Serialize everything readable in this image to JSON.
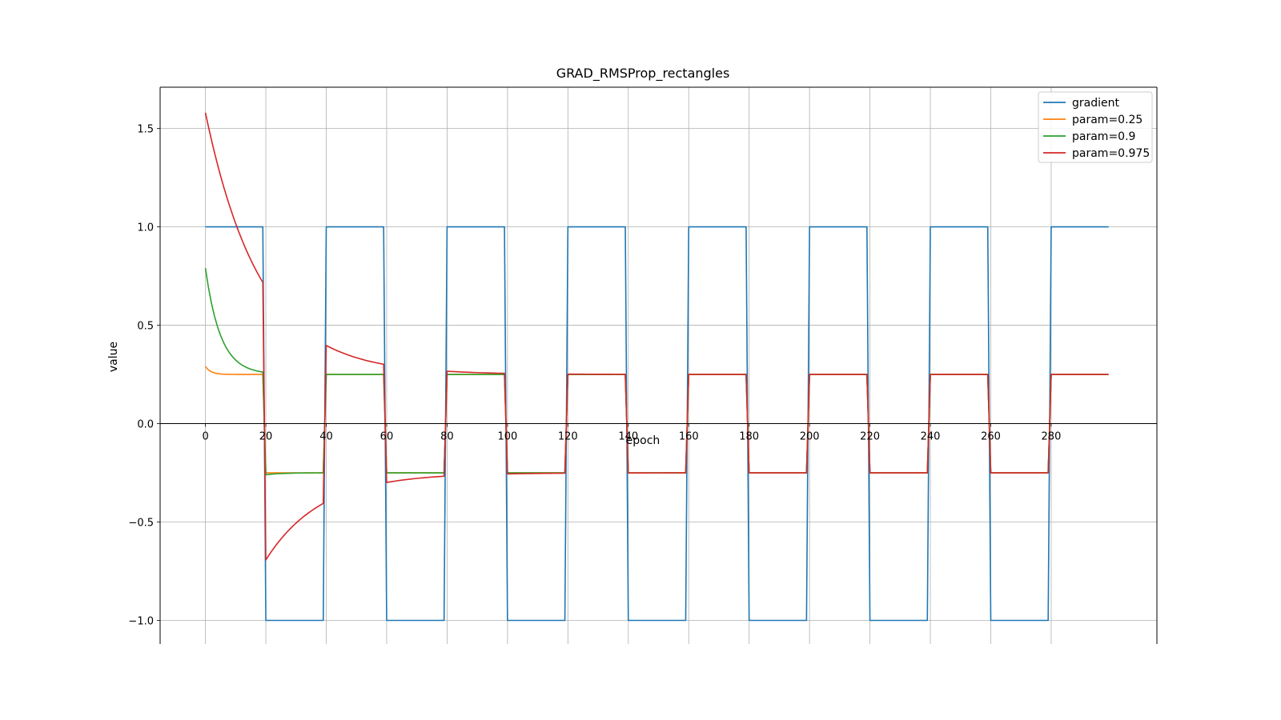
{
  "chart_data": {
    "type": "line",
    "title": "GRAD_RMSProp_rectangles",
    "xlabel": "epoch",
    "ylabel": "value",
    "xlim": [
      -15,
      315
    ],
    "ylim": [
      -1.12,
      1.71
    ],
    "xticks": [
      0,
      20,
      40,
      60,
      80,
      100,
      120,
      140,
      160,
      180,
      200,
      220,
      240,
      260,
      280
    ],
    "xtick_labels": [
      "0",
      "20",
      "40",
      "60",
      "80",
      "100",
      "120",
      "140",
      "160",
      "180",
      "200",
      "220",
      "240",
      "260",
      "280"
    ],
    "yticks": [
      -1.0,
      -0.5,
      0.0,
      0.5,
      1.0,
      1.5
    ],
    "ytick_labels": [
      "−1.0",
      "−0.5",
      "0.0",
      "0.5",
      "1.0",
      "1.5"
    ],
    "grid": true,
    "legend_position": "top-right",
    "x_range": [
      0,
      299
    ],
    "period": 20,
    "series": [
      {
        "name": "gradient",
        "color": "#1f77b4",
        "steady_amplitude": 1.0,
        "initial_value": 1.0,
        "decay": 0.0
      },
      {
        "name": "param=0.25",
        "color": "#ff7f0e",
        "steady_amplitude": 0.25,
        "initial_value": 0.29,
        "decay": 0.55
      },
      {
        "name": "param=0.9",
        "color": "#2ca02c",
        "steady_amplitude": 0.25,
        "initial_value": 0.79,
        "decay": 0.2
      },
      {
        "name": "param=0.975",
        "color": "#d62728",
        "steady_amplitude": 0.25,
        "initial_value": 1.58,
        "decay": 0.055
      }
    ]
  }
}
